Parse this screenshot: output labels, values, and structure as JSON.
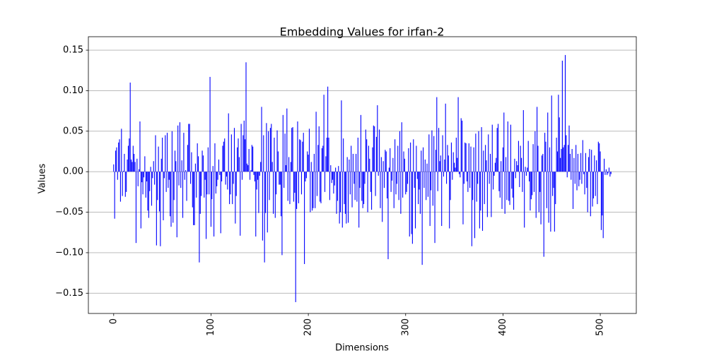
{
  "chart_data": {
    "type": "bar",
    "title": "Embedding Values for irfan-2",
    "xlabel": "Dimensions",
    "ylabel": "Values",
    "color": "#0000ff",
    "bar_width": 0.8,
    "grid": "y",
    "xlim": [
      -26,
      537
    ],
    "xticks": [
      0,
      100,
      200,
      300,
      400,
      500
    ],
    "ylim": [
      -0.175,
      0.1666
    ],
    "yticks": [
      {
        "value": -0.15,
        "label": "−0.15"
      },
      {
        "value": -0.1,
        "label": "−0.10"
      },
      {
        "value": -0.05,
        "label": "−0.05"
      },
      {
        "value": 0,
        "label": "0.00"
      },
      0.05,
      {
        "value": 0.1,
        "label": "0.10"
      },
      0.15
    ],
    "x": [
      0,
      1,
      2,
      3,
      4,
      5,
      6,
      7,
      8,
      9,
      10,
      11,
      12,
      13,
      14,
      15,
      16,
      17,
      18,
      19,
      20,
      21,
      22,
      23,
      24,
      25,
      26,
      27,
      28,
      29,
      30,
      31,
      32,
      33,
      34,
      35,
      36,
      37,
      38,
      39,
      40,
      41,
      42,
      43,
      44,
      45,
      46,
      47,
      48,
      49,
      50,
      51,
      52,
      53,
      54,
      55,
      56,
      57,
      58,
      59,
      60,
      61,
      62,
      63,
      64,
      65,
      66,
      67,
      68,
      69,
      70,
      71,
      72,
      73,
      74,
      75,
      76,
      77,
      78,
      79,
      80,
      81,
      82,
      83,
      84,
      85,
      86,
      87,
      88,
      89,
      90,
      91,
      92,
      93,
      94,
      95,
      96,
      97,
      98,
      99,
      100,
      101,
      102,
      103,
      104,
      105,
      106,
      107,
      108,
      109,
      110,
      111,
      112,
      113,
      114,
      115,
      116,
      117,
      118,
      119,
      120,
      121,
      122,
      123,
      124,
      125,
      126,
      127,
      128,
      129,
      130,
      131,
      132,
      133,
      134,
      135,
      136,
      137,
      138,
      139,
      140,
      141,
      142,
      143,
      144,
      145,
      146,
      147,
      148,
      149,
      150,
      151,
      152,
      153,
      154,
      155,
      156,
      157,
      158,
      159,
      160,
      161,
      162,
      163,
      164,
      165,
      166,
      167,
      168,
      169,
      170,
      171,
      172,
      173,
      174,
      175,
      176,
      177,
      178,
      179,
      180,
      181,
      182,
      183,
      184,
      185,
      186,
      187,
      188,
      189,
      190,
      191,
      192,
      193,
      194,
      195,
      196,
      197,
      198,
      199,
      200,
      201,
      202,
      203,
      204,
      205,
      206,
      207,
      208,
      209,
      210,
      211,
      212,
      213,
      214,
      215,
      216,
      217,
      218,
      219,
      220,
      221,
      222,
      223,
      224,
      225,
      226,
      227,
      228,
      229,
      230,
      231,
      232,
      233,
      234,
      235,
      236,
      237,
      238,
      239,
      240,
      241,
      242,
      243,
      244,
      245,
      246,
      247,
      248,
      249,
      250,
      251,
      252,
      253,
      254,
      255,
      256,
      257,
      258,
      259,
      260,
      261,
      262,
      263,
      264,
      265,
      266,
      267,
      268,
      269,
      270,
      271,
      272,
      273,
      274,
      275,
      276,
      277,
      278,
      279,
      280,
      281,
      282,
      283,
      284,
      285,
      286,
      287,
      288,
      289,
      290,
      291,
      292,
      293,
      294,
      295,
      296,
      297,
      298,
      299,
      300,
      301,
      302,
      303,
      304,
      305,
      306,
      307,
      308,
      309,
      310,
      311,
      312,
      313,
      314,
      315,
      316,
      317,
      318,
      319,
      320,
      321,
      322,
      323,
      324,
      325,
      326,
      327,
      328,
      329,
      330,
      331,
      332,
      333,
      334,
      335,
      336,
      337,
      338,
      339,
      340,
      341,
      342,
      343,
      344,
      345,
      346,
      347,
      348,
      349,
      350,
      351,
      352,
      353,
      354,
      355,
      356,
      357,
      358,
      359,
      360,
      361,
      362,
      363,
      364,
      365,
      366,
      367,
      368,
      369,
      370,
      371,
      372,
      373,
      374,
      375,
      376,
      377,
      378,
      379,
      380,
      381,
      382,
      383,
      384,
      385,
      386,
      387,
      388,
      389,
      390,
      391,
      392,
      393,
      394,
      395,
      396,
      397,
      398,
      399,
      400,
      401,
      402,
      403,
      404,
      405,
      406,
      407,
      408,
      409,
      410,
      411,
      412,
      413,
      414,
      415,
      416,
      417,
      418,
      419,
      420,
      421,
      422,
      423,
      424,
      425,
      426,
      427,
      428,
      429,
      430,
      431,
      432,
      433,
      434,
      435,
      436,
      437,
      438,
      439,
      440,
      441,
      442,
      443,
      444,
      445,
      446,
      447,
      448,
      449,
      450,
      451,
      452,
      453,
      454,
      455,
      456,
      457,
      458,
      459,
      460,
      461,
      462,
      463,
      464,
      465,
      466,
      467,
      468,
      469,
      470,
      471,
      472,
      473,
      474,
      475,
      476,
      477,
      478,
      479,
      480,
      481,
      482,
      483,
      484,
      485,
      486,
      487,
      488,
      489,
      490,
      491,
      492,
      493,
      494,
      495,
      496,
      497,
      498,
      499,
      500,
      501,
      502,
      503,
      504,
      505,
      506,
      507,
      508,
      509,
      510,
      511
    ],
    "values": [
      0.009,
      -0.058,
      0.026,
      0.03,
      -0.01,
      0.036,
      0.04,
      -0.037,
      0.053,
      -0.03,
      0.001,
      0.022,
      -0.031,
      -0.025,
      0.015,
      0.032,
      0.041,
      0.11,
      0.015,
      0.012,
      0.032,
      0.022,
      0.012,
      -0.088,
      0.016,
      -0.018,
      0.003,
      0.062,
      -0.07,
      -0.013,
      -0.028,
      -0.007,
      0.019,
      -0.032,
      -0.012,
      -0.048,
      -0.057,
      -0.024,
      0.006,
      -0.042,
      -0.008,
      0.013,
      -0.016,
      0.045,
      -0.091,
      -0.035,
      0.031,
      -0.049,
      -0.092,
      0.016,
      0.042,
      -0.06,
      -0.008,
      0.045,
      -0.025,
      0.048,
      -0.02,
      -0.01,
      -0.055,
      -0.068,
      0.05,
      -0.063,
      -0.035,
      0.026,
      0.013,
      -0.081,
      0.057,
      -0.017,
      0.061,
      -0.02,
      0.014,
      -0.057,
      0.048,
      -0.01,
      0.002,
      -0.036,
      0.033,
      0.059,
      0.059,
      -0.015,
      0.024,
      -0.044,
      -0.066,
      -0.066,
      0.01,
      -0.032,
      0.035,
      0.019,
      -0.112,
      -0.052,
      -0.03,
      0.026,
      0.02,
      -0.032,
      -0.01,
      -0.083,
      -0.028,
      0.03,
      -0.028,
      0.117,
      -0.068,
      -0.034,
      0.007,
      -0.08,
      0.035,
      -0.027,
      -0.018,
      -0.01,
      0.015,
      -0.004,
      -0.076,
      -0.012,
      0.032,
      0.037,
      0.041,
      -0.016,
      -0.006,
      -0.022,
      0.072,
      -0.04,
      -0.028,
      0.046,
      -0.04,
      -0.015,
      0.054,
      -0.064,
      -0.03,
      0.03,
      0.041,
      0.018,
      -0.079,
      0.059,
      -0.01,
      0.045,
      0.063,
      0.04,
      0.135,
      0.01,
      0.008,
      0.028,
      -0.01,
      0.002,
      0.033,
      0.031,
      -0.004,
      -0.012,
      -0.08,
      -0.022,
      -0.01,
      -0.051,
      -0.005,
      0.012,
      0.08,
      -0.085,
      0.045,
      -0.112,
      -0.051,
      0.06,
      -0.075,
      0.05,
      -0.035,
      0.054,
      0.059,
      0.012,
      -0.052,
      0.042,
      -0.057,
      -0.028,
      0.051,
      0.025,
      -0.016,
      -0.016,
      -0.055,
      -0.103,
      0.07,
      -0.02,
      0.047,
      0.008,
      0.078,
      -0.036,
      0.018,
      -0.04,
      0.012,
      0.054,
      0.055,
      -0.037,
      -0.026,
      -0.161,
      -0.046,
      0.062,
      -0.039,
      0.04,
      0.039,
      -0.028,
      0.037,
      0.048,
      -0.114,
      -0.012,
      -0.008,
      0.025,
      0.021,
      0.053,
      -0.05,
      0.012,
      -0.048,
      -0.045,
      0.022,
      -0.045,
      0.074,
      -0.03,
      0.033,
      0.056,
      -0.037,
      -0.039,
      0.029,
      0.032,
      0.095,
      -0.025,
      0.019,
      0.042,
      0.105,
      0.042,
      -0.035,
      0.008,
      -0.014,
      -0.01,
      -0.027,
      -0.017,
      0.005,
      -0.052,
      -0.036,
      0.007,
      -0.064,
      -0.05,
      0.088,
      -0.069,
      0.041,
      -0.04,
      -0.052,
      -0.064,
      0.018,
      -0.063,
      0.015,
      -0.028,
      0.032,
      -0.044,
      0.022,
      -0.015,
      -0.035,
      0.022,
      -0.037,
      0.042,
      -0.069,
      -0.02,
      0.07,
      -0.036,
      -0.045,
      -0.04,
      -0.015,
      0.052,
      0.04,
      -0.05,
      0.032,
      0.016,
      -0.025,
      -0.047,
      0.03,
      0.057,
      0.056,
      -0.03,
      0.043,
      0.082,
      -0.005,
      0.052,
      -0.045,
      0.018,
      -0.062,
      0.013,
      -0.02,
      0.027,
      0.025,
      -0.033,
      -0.108,
      0.005,
      0.029,
      -0.025,
      -0.011,
      0.017,
      -0.045,
      0.04,
      -0.028,
      -0.015,
      0.032,
      -0.035,
      0.05,
      -0.052,
      0.061,
      -0.032,
      0.025,
      0.016,
      -0.028,
      -0.025,
      -0.015,
      0.029,
      -0.08,
      0.036,
      -0.077,
      -0.089,
      0.04,
      -0.02,
      -0.07,
      0.032,
      -0.009,
      -0.04,
      -0.022,
      -0.052,
      0.026,
      -0.115,
      0.03,
      -0.02,
      0.015,
      -0.035,
      0.01,
      -0.031,
      0.046,
      -0.067,
      -0.023,
      0.051,
      -0.042,
      0.044,
      -0.088,
      0.027,
      0.092,
      -0.024,
      0.054,
      0.013,
      0.02,
      -0.067,
      0.045,
      -0.006,
      0.015,
      0.084,
      -0.015,
      0.033,
      0.02,
      -0.07,
      -0.035,
      0.036,
      -0.01,
      0.024,
      0.011,
      0.005,
      0.042,
      0.017,
      0.092,
      -0.003,
      -0.007,
      0.066,
      0.063,
      -0.065,
      -0.015,
      0.036,
      0.035,
      -0.012,
      -0.025,
      0.035,
      -0.02,
      0.031,
      -0.092,
      -0.035,
      0.03,
      -0.082,
      0.047,
      -0.037,
      -0.015,
      0.05,
      -0.07,
      -0.048,
      0.055,
      -0.073,
      0.026,
      -0.04,
      0.033,
      0.014,
      -0.056,
      0.046,
      -0.015,
      0.022,
      -0.056,
      0.058,
      -0.022,
      -0.005,
      0.011,
      0.017,
      0.054,
      0.059,
      -0.024,
      -0.032,
      0.013,
      -0.046,
      0.03,
      0.073,
      -0.052,
      0.018,
      -0.035,
      0.062,
      -0.036,
      -0.041,
      0.058,
      -0.021,
      -0.032,
      -0.047,
      0.016,
      -0.008,
      0.013,
      0.008,
      0.038,
      -0.019,
      0.032,
      0.017,
      -0.025,
      0.076,
      -0.069,
      0.006,
      -0.005,
      0.005,
      0.038,
      -0.012,
      -0.048,
      -0.034,
      -0.029,
      0.034,
      -0.025,
      0.05,
      -0.057,
      0.08,
      0.032,
      -0.05,
      -0.025,
      -0.065,
      0.02,
      0.022,
      -0.105,
      0.048,
      0.037,
      -0.045,
      0.073,
      -0.063,
      0.03,
      -0.074,
      0.094,
      -0.03,
      -0.02,
      -0.074,
      -0.04,
      0.042,
      0.025,
      0.095,
      0.067,
      0.017,
      0.028,
      0.137,
      0.03,
      0.033,
      0.144,
      0.045,
      -0.007,
      0.033,
      0.057,
      0.022,
      -0.01,
      0.028,
      -0.046,
      0.017,
      -0.015,
      0.033,
      -0.023,
      0.022,
      -0.018,
      -0.01,
      0.023,
      -0.015,
      0.039,
      -0.003,
      -0.028,
      0.023,
      -0.02,
      -0.05,
      0.018,
      0.028,
      -0.055,
      0.027,
      -0.043,
      -0.033,
      0.02,
      -0.03,
      0.014,
      -0.04,
      0.037,
      0.035,
      0.025,
      -0.072,
      -0.054,
      -0.082,
      0.016,
      -0.004,
      0.003,
      -0.004,
      -0.002,
      0.005,
      -0.006,
      -0.003
    ]
  }
}
